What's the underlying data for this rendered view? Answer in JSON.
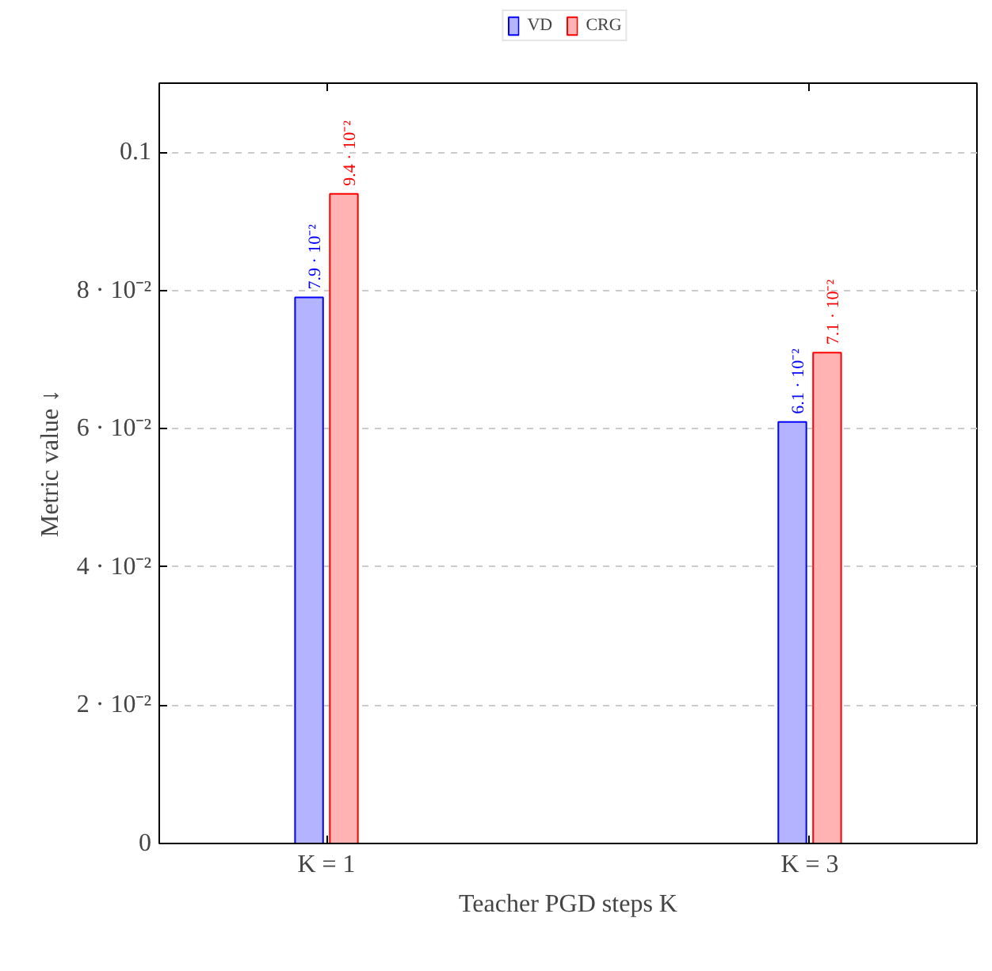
{
  "chart_data": {
    "type": "bar",
    "xlabel": "Teacher PGD steps K",
    "ylabel": "Metric value ↓",
    "categories": [
      "K = 1",
      "K = 3"
    ],
    "series": [
      {
        "name": "VD",
        "color": "#b3b3ff",
        "values": [
          0.079,
          0.061
        ],
        "value_labels": [
          "7.9 · 10⁻²",
          "6.1 · 10⁻²"
        ]
      },
      {
        "name": "CRG",
        "color": "#ffb3b3",
        "values": [
          0.094,
          0.071
        ],
        "value_labels": [
          "9.4 · 10⁻²",
          "7.1 · 10⁻²"
        ]
      }
    ],
    "ylim": [
      0,
      0.11
    ],
    "yticks": [
      0,
      {
        "value": 0.02,
        "label": "2 · 10⁻²"
      },
      {
        "value": 0.04,
        "label": "4 · 10⁻²"
      },
      {
        "value": 0.06,
        "label": "6 · 10⁻²"
      },
      {
        "value": 0.08,
        "label": "8 · 10⁻²"
      },
      0.1
    ],
    "grid": "y",
    "legend": "top"
  }
}
